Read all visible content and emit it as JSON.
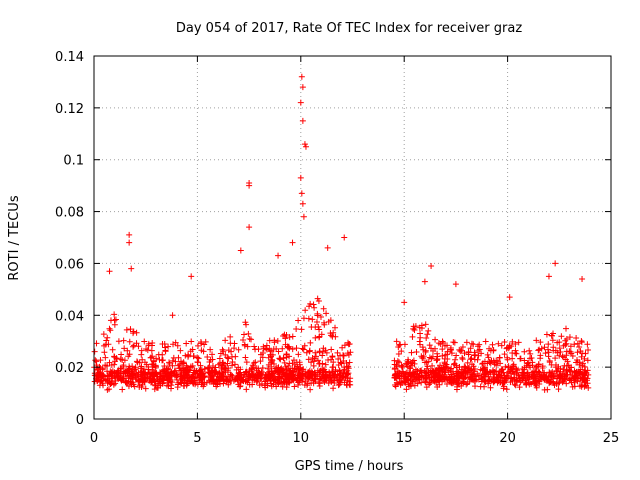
{
  "chart_data": {
    "type": "scatter",
    "title": "Day 054 of 2017, Rate Of TEC Index for receiver graz",
    "xlabel": "GPS time / hours",
    "ylabel": "ROTI / TECUs",
    "xlim": [
      0,
      25
    ],
    "ylim": [
      0,
      0.14
    ],
    "x_ticks": [
      "0",
      "5",
      "10",
      "15",
      "20",
      "25"
    ],
    "y_ticks": [
      "0",
      "0.02",
      "0.04",
      "0.06",
      "0.08",
      "0.1",
      "0.12",
      "0.14"
    ],
    "grid": true,
    "marker": "+",
    "color": "#ff0000",
    "data_gap_hours": [
      12.4,
      14.5
    ],
    "notable_points": [
      {
        "x": 10.05,
        "y": 0.132
      },
      {
        "x": 10.1,
        "y": 0.128
      },
      {
        "x": 10.0,
        "y": 0.122
      },
      {
        "x": 10.1,
        "y": 0.115
      },
      {
        "x": 10.2,
        "y": 0.106
      },
      {
        "x": 10.25,
        "y": 0.105
      },
      {
        "x": 10.0,
        "y": 0.093
      },
      {
        "x": 7.5,
        "y": 0.091
      },
      {
        "x": 7.5,
        "y": 0.09
      },
      {
        "x": 10.05,
        "y": 0.087
      },
      {
        "x": 10.1,
        "y": 0.083
      },
      {
        "x": 10.15,
        "y": 0.078
      },
      {
        "x": 7.5,
        "y": 0.074
      },
      {
        "x": 1.7,
        "y": 0.071
      },
      {
        "x": 12.1,
        "y": 0.07
      },
      {
        "x": 1.7,
        "y": 0.068
      },
      {
        "x": 9.6,
        "y": 0.068
      },
      {
        "x": 11.3,
        "y": 0.066
      },
      {
        "x": 7.1,
        "y": 0.065
      },
      {
        "x": 8.9,
        "y": 0.063
      },
      {
        "x": 16.3,
        "y": 0.059
      },
      {
        "x": 22.3,
        "y": 0.06
      },
      {
        "x": 1.8,
        "y": 0.058
      },
      {
        "x": 0.75,
        "y": 0.057
      },
      {
        "x": 4.7,
        "y": 0.055
      },
      {
        "x": 16.0,
        "y": 0.053
      },
      {
        "x": 17.5,
        "y": 0.052
      },
      {
        "x": 22.0,
        "y": 0.055
      },
      {
        "x": 23.6,
        "y": 0.054
      },
      {
        "x": 20.1,
        "y": 0.047
      },
      {
        "x": 15.0,
        "y": 0.045
      },
      {
        "x": 3.8,
        "y": 0.04
      }
    ]
  }
}
